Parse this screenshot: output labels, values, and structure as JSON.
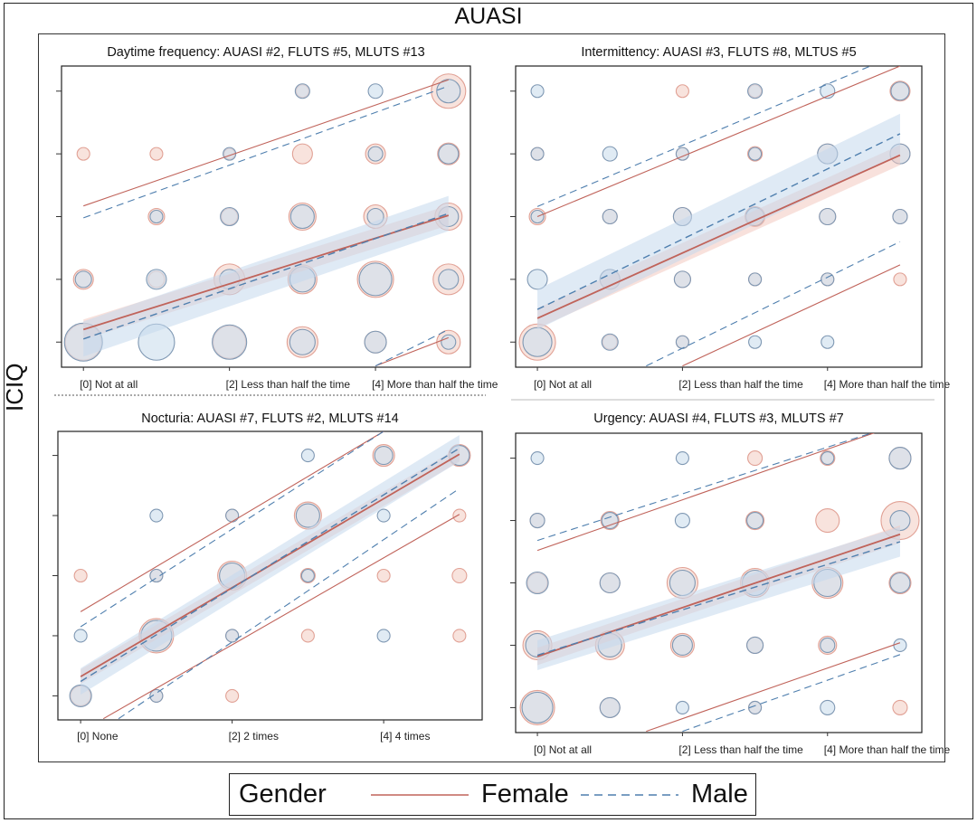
{
  "figure_title": "AUASI",
  "y_axis_label": "ICIQ",
  "legend": {
    "title": "Gender",
    "entries": [
      {
        "name": "Female",
        "color": "#c0635a",
        "dash": "solid"
      },
      {
        "name": "Male",
        "color": "#4f7fae",
        "dash": "dashed"
      }
    ]
  },
  "colors": {
    "female_line": "#c0635a",
    "male_line": "#4f7fae",
    "female_bubble_fill": "#f6d9d2",
    "female_bubble_stroke": "#e1a195",
    "male_bubble_fill": "#cfe0ee",
    "male_bubble_stroke": "#7f98b3",
    "female_band": "#f3c9bf",
    "male_band": "#c5d9ec"
  },
  "chart_data": [
    {
      "type": "scatter",
      "title": "Daytime frequency: AUASI #2, FLUTS #5, MLUTS #13",
      "x_tick_labels": [
        {
          "x": 0,
          "label": "[0] Not at all"
        },
        {
          "x": 2,
          "label": "[2] Less than half the time"
        },
        {
          "x": 4,
          "label": "[4] More than half the time"
        }
      ],
      "xlim": [
        -0.3,
        5.3
      ],
      "ylim": [
        -0.4,
        4.4
      ],
      "bubbles": [
        {
          "x": 0,
          "y": 0,
          "f": 40,
          "m": 42
        },
        {
          "x": 1,
          "y": 0,
          "f": 0,
          "m": 40
        },
        {
          "x": 2,
          "y": 0,
          "f": 36,
          "m": 38
        },
        {
          "x": 3,
          "y": 0,
          "f": 34,
          "m": 28
        },
        {
          "x": 4,
          "y": 0,
          "f": 24,
          "m": 24
        },
        {
          "x": 5,
          "y": 0,
          "f": 26,
          "m": 16
        },
        {
          "x": 0,
          "y": 1,
          "f": 22,
          "m": 18
        },
        {
          "x": 1,
          "y": 1,
          "f": 18,
          "m": 22
        },
        {
          "x": 2,
          "y": 1,
          "f": 34,
          "m": 22
        },
        {
          "x": 3,
          "y": 1,
          "f": 32,
          "m": 28
        },
        {
          "x": 4,
          "y": 1,
          "f": 40,
          "m": 36
        },
        {
          "x": 5,
          "y": 1,
          "f": 34,
          "m": 22
        },
        {
          "x": 1,
          "y": 2,
          "f": 18,
          "m": 14
        },
        {
          "x": 2,
          "y": 2,
          "f": 18,
          "m": 20
        },
        {
          "x": 3,
          "y": 2,
          "f": 30,
          "m": 26
        },
        {
          "x": 4,
          "y": 2,
          "f": 26,
          "m": 18
        },
        {
          "x": 5,
          "y": 2,
          "f": 30,
          "m": 22
        },
        {
          "x": 0,
          "y": 3,
          "f": 14,
          "m": 0
        },
        {
          "x": 1,
          "y": 3,
          "f": 14,
          "m": 0
        },
        {
          "x": 2,
          "y": 3,
          "f": 12,
          "m": 14
        },
        {
          "x": 3,
          "y": 3,
          "f": 22,
          "m": 0
        },
        {
          "x": 4,
          "y": 3,
          "f": 22,
          "m": 16
        },
        {
          "x": 5,
          "y": 3,
          "f": 24,
          "m": 22
        },
        {
          "x": 3,
          "y": 4,
          "f": 14,
          "m": 16
        },
        {
          "x": 4,
          "y": 4,
          "f": 0,
          "m": 16
        },
        {
          "x": 5,
          "y": 4,
          "f": 38,
          "m": 26
        }
      ],
      "female": {
        "fit": [
          [
            0,
            0.2
          ],
          [
            5,
            2.02
          ]
        ],
        "band": 0.16,
        "pi_upper": [
          [
            0,
            2.17
          ],
          [
            5,
            4.18
          ]
        ],
        "pi_lower": [
          [
            4,
            -0.38
          ],
          [
            5,
            0.07
          ]
        ]
      },
      "male": {
        "fit": [
          [
            0,
            0.05
          ],
          [
            5,
            2.05
          ]
        ],
        "band": 0.28,
        "pi_upper": [
          [
            0,
            1.98
          ],
          [
            5,
            4.08
          ]
        ],
        "pi_lower": [
          [
            4,
            -0.38
          ],
          [
            5,
            0.2
          ]
        ]
      }
    },
    {
      "type": "scatter",
      "title": "Intermittency: AUASI #3, FLUTS #8, MLTUS #5",
      "x_tick_labels": [
        {
          "x": 0,
          "label": "[0] Not at all"
        },
        {
          "x": 2,
          "label": "[2] Less than half the time"
        },
        {
          "x": 4,
          "label": "[4] More than half the time"
        }
      ],
      "xlim": [
        -0.3,
        5.3
      ],
      "ylim": [
        -0.4,
        4.4
      ],
      "bubbles": [
        {
          "x": 0,
          "y": 0,
          "f": 40,
          "m": 32
        },
        {
          "x": 1,
          "y": 0,
          "f": 16,
          "m": 18
        },
        {
          "x": 2,
          "y": 0,
          "f": 14,
          "m": 14
        },
        {
          "x": 3,
          "y": 0,
          "f": 0,
          "m": 14
        },
        {
          "x": 4,
          "y": 0,
          "f": 0,
          "m": 14
        },
        {
          "x": 0,
          "y": 1,
          "f": 0,
          "m": 22
        },
        {
          "x": 1,
          "y": 1,
          "f": 22,
          "m": 22
        },
        {
          "x": 2,
          "y": 1,
          "f": 18,
          "m": 18
        },
        {
          "x": 3,
          "y": 1,
          "f": 14,
          "m": 14
        },
        {
          "x": 4,
          "y": 1,
          "f": 14,
          "m": 14
        },
        {
          "x": 5,
          "y": 1,
          "f": 14,
          "m": 0
        },
        {
          "x": 0,
          "y": 2,
          "f": 18,
          "m": 14
        },
        {
          "x": 1,
          "y": 2,
          "f": 16,
          "m": 16
        },
        {
          "x": 2,
          "y": 2,
          "f": 20,
          "m": 20
        },
        {
          "x": 3,
          "y": 2,
          "f": 22,
          "m": 20
        },
        {
          "x": 4,
          "y": 2,
          "f": 18,
          "m": 18
        },
        {
          "x": 5,
          "y": 2,
          "f": 16,
          "m": 16
        },
        {
          "x": 0,
          "y": 3,
          "f": 14,
          "m": 14
        },
        {
          "x": 1,
          "y": 3,
          "f": 0,
          "m": 16
        },
        {
          "x": 2,
          "y": 3,
          "f": 14,
          "m": 14
        },
        {
          "x": 3,
          "y": 3,
          "f": 16,
          "m": 14
        },
        {
          "x": 4,
          "y": 3,
          "f": 22,
          "m": 22
        },
        {
          "x": 5,
          "y": 3,
          "f": 22,
          "m": 22
        },
        {
          "x": 0,
          "y": 4,
          "f": 0,
          "m": 14
        },
        {
          "x": 2,
          "y": 4,
          "f": 14,
          "m": 0
        },
        {
          "x": 3,
          "y": 4,
          "f": 14,
          "m": 16
        },
        {
          "x": 4,
          "y": 4,
          "f": 0,
          "m": 16
        },
        {
          "x": 5,
          "y": 4,
          "f": 22,
          "m": 20
        }
      ],
      "female": {
        "fit": [
          [
            0,
            0.38
          ],
          [
            5,
            2.98
          ]
        ],
        "band": 0.16,
        "pi_upper": [
          [
            0,
            2.0
          ],
          [
            5,
            4.4
          ]
        ],
        "pi_lower": [
          [
            2,
            -0.38
          ],
          [
            5,
            1.23
          ]
        ]
      },
      "male": {
        "fit": [
          [
            0,
            0.52
          ],
          [
            5,
            3.32
          ]
        ],
        "band": 0.32,
        "pi_upper": [
          [
            0,
            2.16
          ],
          [
            5,
            4.6
          ]
        ],
        "pi_lower": [
          [
            1.5,
            -0.38
          ],
          [
            5,
            1.6
          ]
        ]
      }
    },
    {
      "type": "scatter",
      "title": "Nocturia: AUASI #7, FLUTS #2, MLUTS #14",
      "x_tick_labels": [
        {
          "x": 0,
          "label": "[0] None"
        },
        {
          "x": 2,
          "label": "[2] 2 times"
        },
        {
          "x": 4,
          "label": "[4] 4 times"
        }
      ],
      "xlim": [
        -0.3,
        5.3
      ],
      "ylim": [
        -0.4,
        4.4
      ],
      "bubbles": [
        {
          "x": 0,
          "y": 0,
          "f": 22,
          "m": 24
        },
        {
          "x": 1,
          "y": 0,
          "f": 14,
          "m": 14
        },
        {
          "x": 2,
          "y": 0,
          "f": 14,
          "m": 0
        },
        {
          "x": 0,
          "y": 1,
          "f": 0,
          "m": 14
        },
        {
          "x": 1,
          "y": 1,
          "f": 38,
          "m": 34
        },
        {
          "x": 2,
          "y": 1,
          "f": 14,
          "m": 14
        },
        {
          "x": 3,
          "y": 1,
          "f": 14,
          "m": 0
        },
        {
          "x": 4,
          "y": 1,
          "f": 0,
          "m": 14
        },
        {
          "x": 5,
          "y": 1,
          "f": 14,
          "m": 0
        },
        {
          "x": 0,
          "y": 2,
          "f": 14,
          "m": 0
        },
        {
          "x": 1,
          "y": 2,
          "f": 14,
          "m": 14
        },
        {
          "x": 2,
          "y": 2,
          "f": 32,
          "m": 28
        },
        {
          "x": 3,
          "y": 2,
          "f": 16,
          "m": 14
        },
        {
          "x": 4,
          "y": 2,
          "f": 14,
          "m": 0
        },
        {
          "x": 5,
          "y": 2,
          "f": 16,
          "m": 0
        },
        {
          "x": 1,
          "y": 3,
          "f": 0,
          "m": 14
        },
        {
          "x": 2,
          "y": 3,
          "f": 14,
          "m": 14
        },
        {
          "x": 3,
          "y": 3,
          "f": 30,
          "m": 26
        },
        {
          "x": 4,
          "y": 3,
          "f": 0,
          "m": 14
        },
        {
          "x": 5,
          "y": 3,
          "f": 14,
          "m": 0
        },
        {
          "x": 3,
          "y": 4,
          "f": 0,
          "m": 14
        },
        {
          "x": 4,
          "y": 4,
          "f": 24,
          "m": 20
        },
        {
          "x": 5,
          "y": 4,
          "f": 24,
          "m": 22
        }
      ],
      "female": {
        "fit": [
          [
            0,
            0.32
          ],
          [
            5,
            4.02
          ]
        ],
        "band": 0.12,
        "pi_upper": [
          [
            0,
            1.4
          ],
          [
            4,
            4.4
          ]
        ],
        "pi_lower": [
          [
            0.3,
            -0.38
          ],
          [
            5,
            3.02
          ]
        ]
      },
      "male": {
        "fit": [
          [
            0,
            0.24
          ],
          [
            5,
            4.12
          ]
        ],
        "band": 0.22,
        "pi_upper": [
          [
            0,
            1.15
          ],
          [
            4,
            4.4
          ]
        ],
        "pi_lower": [
          [
            0.5,
            -0.38
          ],
          [
            5,
            3.45
          ]
        ]
      }
    },
    {
      "type": "scatter",
      "title": "Urgency: AUASI #4, FLUTS #3, MLUTS #7",
      "x_tick_labels": [
        {
          "x": 0,
          "label": "[0] Not at all"
        },
        {
          "x": 2,
          "label": "[2] Less than half the time"
        },
        {
          "x": 4,
          "label": "[4] More than half the time"
        }
      ],
      "xlim": [
        -0.3,
        5.3
      ],
      "ylim": [
        -0.4,
        4.4
      ],
      "bubbles": [
        {
          "x": 0,
          "y": 0,
          "f": 38,
          "m": 34
        },
        {
          "x": 1,
          "y": 0,
          "f": 22,
          "m": 22
        },
        {
          "x": 2,
          "y": 0,
          "f": 0,
          "m": 14
        },
        {
          "x": 3,
          "y": 0,
          "f": 14,
          "m": 14
        },
        {
          "x": 4,
          "y": 0,
          "f": 0,
          "m": 16
        },
        {
          "x": 5,
          "y": 0,
          "f": 16,
          "m": 0
        },
        {
          "x": 0,
          "y": 1,
          "f": 32,
          "m": 26
        },
        {
          "x": 1,
          "y": 1,
          "f": 32,
          "m": 26
        },
        {
          "x": 2,
          "y": 1,
          "f": 26,
          "m": 22
        },
        {
          "x": 3,
          "y": 1,
          "f": 18,
          "m": 18
        },
        {
          "x": 4,
          "y": 1,
          "f": 20,
          "m": 16
        },
        {
          "x": 5,
          "y": 1,
          "f": 0,
          "m": 14
        },
        {
          "x": 0,
          "y": 2,
          "f": 22,
          "m": 24
        },
        {
          "x": 1,
          "y": 2,
          "f": 22,
          "m": 22
        },
        {
          "x": 2,
          "y": 2,
          "f": 34,
          "m": 28
        },
        {
          "x": 3,
          "y": 2,
          "f": 32,
          "m": 28
        },
        {
          "x": 4,
          "y": 2,
          "f": 34,
          "m": 30
        },
        {
          "x": 5,
          "y": 2,
          "f": 24,
          "m": 22
        },
        {
          "x": 0,
          "y": 3,
          "f": 16,
          "m": 16
        },
        {
          "x": 1,
          "y": 3,
          "f": 20,
          "m": 18
        },
        {
          "x": 2,
          "y": 3,
          "f": 0,
          "m": 16
        },
        {
          "x": 3,
          "y": 3,
          "f": 20,
          "m": 18
        },
        {
          "x": 4,
          "y": 3,
          "f": 26,
          "m": 0
        },
        {
          "x": 5,
          "y": 3,
          "f": 42,
          "m": 22
        },
        {
          "x": 0,
          "y": 4,
          "f": 0,
          "m": 14
        },
        {
          "x": 2,
          "y": 4,
          "f": 0,
          "m": 14
        },
        {
          "x": 3,
          "y": 4,
          "f": 16,
          "m": 0
        },
        {
          "x": 4,
          "y": 4,
          "f": 16,
          "m": 14
        },
        {
          "x": 5,
          "y": 4,
          "f": 24,
          "m": 24
        }
      ],
      "female": {
        "fit": [
          [
            0,
            0.82
          ],
          [
            5,
            2.78
          ]
        ],
        "band": 0.14,
        "pi_upper": [
          [
            0,
            2.52
          ],
          [
            5,
            4.55
          ]
        ],
        "pi_lower": [
          [
            1.5,
            -0.38
          ],
          [
            5,
            1.04
          ]
        ]
      },
      "male": {
        "fit": [
          [
            0,
            0.84
          ],
          [
            5,
            2.66
          ]
        ],
        "band": 0.24,
        "pi_upper": [
          [
            0,
            2.68
          ],
          [
            5,
            4.55
          ]
        ],
        "pi_lower": [
          [
            2,
            -0.38
          ],
          [
            5,
            0.85
          ]
        ]
      }
    }
  ]
}
